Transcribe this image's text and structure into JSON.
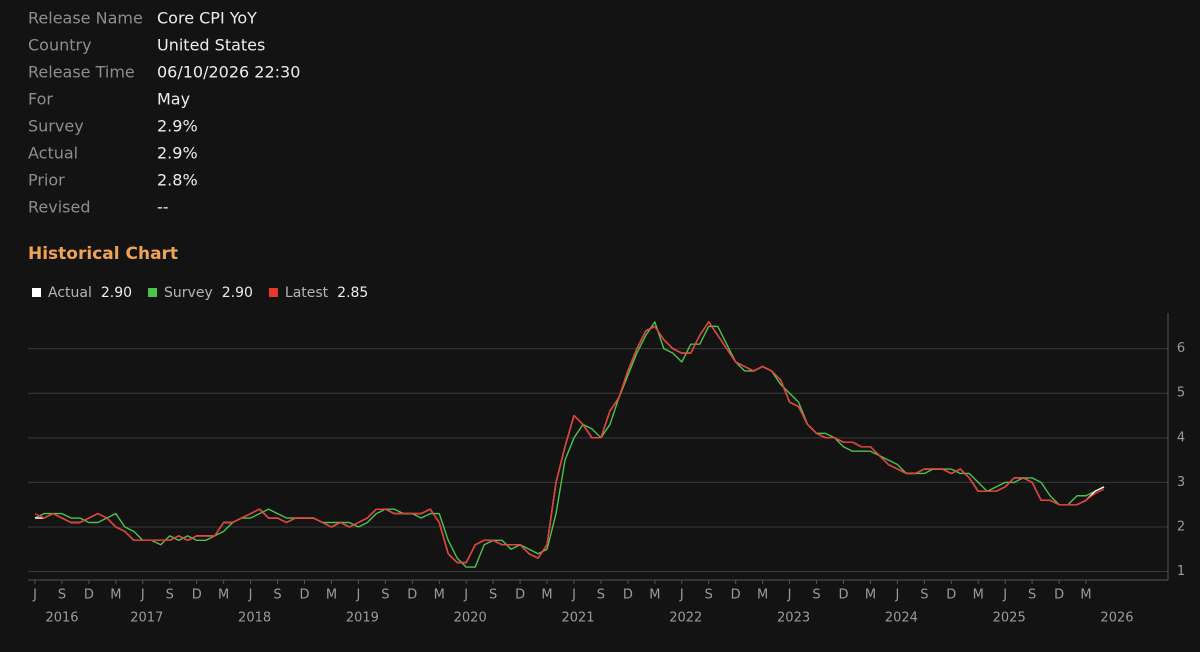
{
  "release_info": {
    "rows": [
      {
        "label": "Release Name",
        "value": "Core CPI YoY"
      },
      {
        "label": "Country",
        "value": "United States"
      },
      {
        "label": "Release Time",
        "value": "06/10/2026 22:30"
      },
      {
        "label": "For",
        "value": "May"
      },
      {
        "label": "Survey",
        "value": "2.9%"
      },
      {
        "label": "Actual",
        "value": "2.9%"
      },
      {
        "label": "Prior",
        "value": "2.8%"
      },
      {
        "label": "Revised",
        "value": "--"
      }
    ]
  },
  "chart_data": {
    "type": "line",
    "title": "Historical Chart",
    "x": [
      "2016-06",
      "2016-07",
      "2016-08",
      "2016-09",
      "2016-10",
      "2016-11",
      "2016-12",
      "2017-01",
      "2017-02",
      "2017-03",
      "2017-04",
      "2017-05",
      "2017-06",
      "2017-07",
      "2017-08",
      "2017-09",
      "2017-10",
      "2017-11",
      "2017-12",
      "2018-01",
      "2018-02",
      "2018-03",
      "2018-04",
      "2018-05",
      "2018-06",
      "2018-07",
      "2018-08",
      "2018-09",
      "2018-10",
      "2018-11",
      "2018-12",
      "2019-01",
      "2019-02",
      "2019-03",
      "2019-04",
      "2019-05",
      "2019-06",
      "2019-07",
      "2019-08",
      "2019-09",
      "2019-10",
      "2019-11",
      "2019-12",
      "2020-01",
      "2020-02",
      "2020-03",
      "2020-04",
      "2020-05",
      "2020-06",
      "2020-07",
      "2020-08",
      "2020-09",
      "2020-10",
      "2020-11",
      "2020-12",
      "2021-01",
      "2021-02",
      "2021-03",
      "2021-04",
      "2021-05",
      "2021-06",
      "2021-07",
      "2021-08",
      "2021-09",
      "2021-10",
      "2021-11",
      "2021-12",
      "2022-01",
      "2022-02",
      "2022-03",
      "2022-04",
      "2022-05",
      "2022-06",
      "2022-07",
      "2022-08",
      "2022-09",
      "2022-10",
      "2022-11",
      "2022-12",
      "2023-01",
      "2023-02",
      "2023-03",
      "2023-04",
      "2023-05",
      "2023-06",
      "2023-07",
      "2023-08",
      "2023-09",
      "2023-10",
      "2023-11",
      "2023-12",
      "2024-01",
      "2024-02",
      "2024-03",
      "2024-04",
      "2024-05",
      "2024-06",
      "2024-07",
      "2024-08",
      "2024-09",
      "2024-10",
      "2024-11",
      "2024-12",
      "2025-01",
      "2025-02",
      "2025-03",
      "2025-04",
      "2025-05",
      "2025-06",
      "2025-07",
      "2025-08",
      "2025-09",
      "2025-10",
      "2025-11",
      "2025-12",
      "2026-01",
      "2026-02",
      "2026-03",
      "2026-04",
      "2026-05"
    ],
    "series": [
      {
        "name": "Survey",
        "color": "#4cc34a",
        "legend_value": "2.90",
        "values": [
          2.2,
          2.3,
          2.3,
          2.3,
          2.2,
          2.2,
          2.1,
          2.1,
          2.2,
          2.3,
          2.0,
          1.9,
          1.7,
          1.7,
          1.6,
          1.8,
          1.7,
          1.8,
          1.7,
          1.7,
          1.8,
          1.9,
          2.1,
          2.2,
          2.2,
          2.3,
          2.4,
          2.3,
          2.2,
          2.2,
          2.2,
          2.2,
          2.1,
          2.1,
          2.1,
          2.1,
          2.0,
          2.1,
          2.3,
          2.4,
          2.4,
          2.3,
          2.3,
          2.2,
          2.3,
          2.3,
          1.7,
          1.3,
          1.1,
          1.1,
          1.6,
          1.7,
          1.7,
          1.5,
          1.6,
          1.5,
          1.4,
          1.5,
          2.3,
          3.5,
          4.0,
          4.3,
          4.2,
          4.0,
          4.3,
          4.9,
          5.4,
          5.9,
          6.3,
          6.6,
          6.0,
          5.9,
          5.7,
          6.1,
          6.1,
          6.5,
          6.5,
          6.1,
          5.7,
          5.5,
          5.5,
          5.6,
          5.5,
          5.2,
          5.0,
          4.8,
          4.3,
          4.1,
          4.1,
          4.0,
          3.8,
          3.7,
          3.7,
          3.7,
          3.6,
          3.5,
          3.4,
          3.2,
          3.2,
          3.2,
          3.3,
          3.3,
          3.3,
          3.2,
          3.2,
          3.0,
          2.8,
          2.9,
          3.0,
          3.0,
          3.1,
          3.1,
          3.0,
          2.7,
          2.5,
          2.5,
          2.7,
          2.7,
          2.8,
          2.9
        ]
      },
      {
        "name": "Actual",
        "color": "#ffffff",
        "legend_value": "2.90",
        "values": [
          2.2,
          2.2,
          2.3,
          2.2,
          2.1,
          2.1,
          2.2,
          2.3,
          2.2,
          2.0,
          1.9,
          1.7,
          1.7,
          1.7,
          1.7,
          1.7,
          1.8,
          1.7,
          1.8,
          1.8,
          1.8,
          2.1,
          2.1,
          2.2,
          2.3,
          2.4,
          2.2,
          2.2,
          2.1,
          2.2,
          2.2,
          2.2,
          2.1,
          2.0,
          2.1,
          2.0,
          2.1,
          2.2,
          2.4,
          2.4,
          2.3,
          2.3,
          2.3,
          2.3,
          2.4,
          2.1,
          1.4,
          1.2,
          1.2,
          1.6,
          1.7,
          1.7,
          1.6,
          1.6,
          1.6,
          1.4,
          1.3,
          1.6,
          3.0,
          3.8,
          4.5,
          4.3,
          4.0,
          4.0,
          4.6,
          4.9,
          5.5,
          6.0,
          6.4,
          6.5,
          6.2,
          6.0,
          5.9,
          5.9,
          6.3,
          6.6,
          6.3,
          6.0,
          5.7,
          5.6,
          5.5,
          5.6,
          5.5,
          5.3,
          4.8,
          4.7,
          4.3,
          4.1,
          4.0,
          4.0,
          3.9,
          3.9,
          3.8,
          3.8,
          3.6,
          3.4,
          3.3,
          3.2,
          3.2,
          3.3,
          3.3,
          3.3,
          3.2,
          3.3,
          3.1,
          2.8,
          2.8,
          2.8,
          2.9,
          3.1,
          3.1,
          3.0,
          2.6,
          2.6,
          2.5,
          2.5,
          2.5,
          2.6,
          2.8,
          2.9
        ]
      },
      {
        "name": "Latest",
        "color": "#e8372c",
        "legend_value": "2.85",
        "values": [
          2.3,
          2.2,
          2.3,
          2.2,
          2.1,
          2.1,
          2.2,
          2.3,
          2.2,
          2.0,
          1.9,
          1.7,
          1.7,
          1.7,
          1.7,
          1.7,
          1.8,
          1.7,
          1.8,
          1.8,
          1.8,
          2.1,
          2.1,
          2.2,
          2.3,
          2.4,
          2.2,
          2.2,
          2.1,
          2.2,
          2.2,
          2.2,
          2.1,
          2.0,
          2.1,
          2.0,
          2.1,
          2.2,
          2.4,
          2.4,
          2.3,
          2.3,
          2.3,
          2.3,
          2.4,
          2.1,
          1.4,
          1.2,
          1.2,
          1.6,
          1.7,
          1.7,
          1.6,
          1.6,
          1.6,
          1.4,
          1.3,
          1.6,
          3.0,
          3.8,
          4.5,
          4.3,
          4.0,
          4.0,
          4.6,
          4.9,
          5.5,
          6.0,
          6.4,
          6.5,
          6.2,
          6.0,
          5.9,
          5.9,
          6.3,
          6.6,
          6.3,
          6.0,
          5.7,
          5.6,
          5.5,
          5.6,
          5.5,
          5.3,
          4.8,
          4.7,
          4.3,
          4.1,
          4.0,
          4.0,
          3.9,
          3.9,
          3.8,
          3.8,
          3.6,
          3.4,
          3.3,
          3.2,
          3.2,
          3.3,
          3.3,
          3.3,
          3.2,
          3.3,
          3.1,
          2.8,
          2.8,
          2.8,
          2.9,
          3.1,
          3.1,
          3.0,
          2.6,
          2.6,
          2.5,
          2.5,
          2.5,
          2.6,
          2.75,
          2.85
        ]
      }
    ],
    "ylim": [
      0.9,
      6.8
    ],
    "yticks": [
      1,
      2,
      3,
      4,
      5,
      6
    ],
    "grid": true,
    "xticks": [
      {
        "value": "2016-06",
        "label": "J"
      },
      {
        "value": "2016-09",
        "label": "S"
      },
      {
        "value": "2016-12",
        "label": "D"
      },
      {
        "value": "2017-03",
        "label": "M"
      },
      {
        "value": "2017-06",
        "label": "J"
      },
      {
        "value": "2017-09",
        "label": "S"
      },
      {
        "value": "2017-12",
        "label": "D"
      },
      {
        "value": "2018-03",
        "label": "M"
      },
      {
        "value": "2018-06",
        "label": "J"
      },
      {
        "value": "2018-09",
        "label": "S"
      },
      {
        "value": "2018-12",
        "label": "D"
      },
      {
        "value": "2019-03",
        "label": "M"
      },
      {
        "value": "2019-06",
        "label": "J"
      },
      {
        "value": "2019-09",
        "label": "S"
      },
      {
        "value": "2019-12",
        "label": "D"
      },
      {
        "value": "2020-03",
        "label": "M"
      },
      {
        "value": "2020-06",
        "label": "J"
      },
      {
        "value": "2020-09",
        "label": "S"
      },
      {
        "value": "2020-12",
        "label": "D"
      },
      {
        "value": "2021-03",
        "label": "M"
      },
      {
        "value": "2021-06",
        "label": "J"
      },
      {
        "value": "2021-09",
        "label": "S"
      },
      {
        "value": "2021-12",
        "label": "D"
      },
      {
        "value": "2022-03",
        "label": "M"
      },
      {
        "value": "2022-06",
        "label": "J"
      },
      {
        "value": "2022-09",
        "label": "S"
      },
      {
        "value": "2022-12",
        "label": "D"
      },
      {
        "value": "2023-03",
        "label": "M"
      },
      {
        "value": "2023-06",
        "label": "J"
      },
      {
        "value": "2023-09",
        "label": "S"
      },
      {
        "value": "2023-12",
        "label": "D"
      },
      {
        "value": "2024-03",
        "label": "M"
      },
      {
        "value": "2024-06",
        "label": "J"
      },
      {
        "value": "2024-09",
        "label": "S"
      },
      {
        "value": "2024-12",
        "label": "D"
      },
      {
        "value": "2025-03",
        "label": "M"
      },
      {
        "value": "2025-06",
        "label": "J"
      },
      {
        "value": "2025-09",
        "label": "S"
      },
      {
        "value": "2025-12",
        "label": "D"
      },
      {
        "value": "2026-03",
        "label": "M"
      }
    ],
    "xyears": [
      {
        "value": "2016-06",
        "label": "2016"
      },
      {
        "value": "2017-06",
        "label": "2017"
      },
      {
        "value": "2018-06",
        "label": "2018"
      },
      {
        "value": "2019-06",
        "label": "2019"
      },
      {
        "value": "2020-06",
        "label": "2020"
      },
      {
        "value": "2021-06",
        "label": "2021"
      },
      {
        "value": "2022-06",
        "label": "2022"
      },
      {
        "value": "2023-06",
        "label": "2023"
      },
      {
        "value": "2024-06",
        "label": "2024"
      },
      {
        "value": "2025-06",
        "label": "2025"
      },
      {
        "value": "2026-06",
        "label": "2026"
      }
    ]
  }
}
